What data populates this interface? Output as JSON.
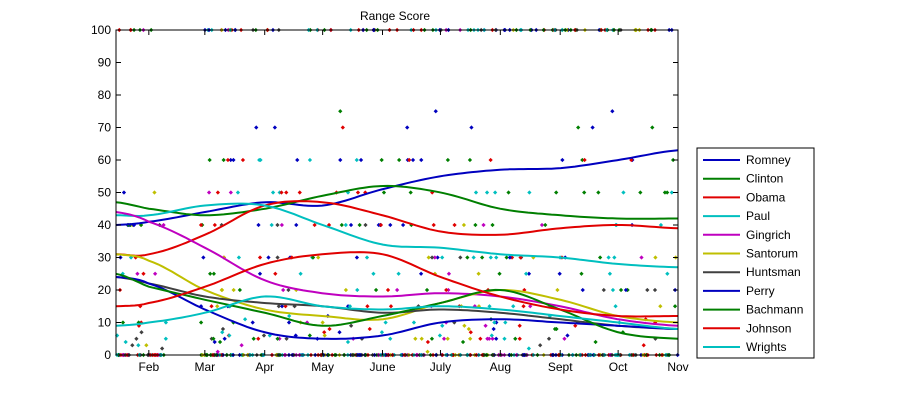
{
  "chart_data": {
    "type": "scatter",
    "title": "Range Score",
    "xlabel": "",
    "ylabel": "",
    "ylim": [
      0,
      100
    ],
    "xlim": [
      "2012-01-15",
      "2012-11-01"
    ],
    "grid": false,
    "legend_position": "right",
    "x_tick_labels": [
      "Feb",
      "Mar",
      "Apr",
      "May",
      "June",
      "July",
      "Aug",
      "Sept",
      "Oct",
      "Nov"
    ],
    "x_tick_dates": [
      "2012-02-01",
      "2012-03-01",
      "2012-04-01",
      "2012-05-01",
      "2012-06-01",
      "2012-07-01",
      "2012-08-01",
      "2012-09-01",
      "2012-10-01",
      "2012-11-01"
    ],
    "y_tick_labels": [
      "0",
      "10",
      "20",
      "30",
      "40",
      "50",
      "60",
      "70",
      "80",
      "90",
      "100"
    ],
    "y_ticks": [
      0,
      10,
      20,
      30,
      40,
      50,
      60,
      70,
      80,
      90,
      100
    ],
    "curve_dates": [
      "2012-01-15",
      "2012-02-01",
      "2012-03-01",
      "2012-04-01",
      "2012-05-01",
      "2012-06-01",
      "2012-07-01",
      "2012-08-01",
      "2012-09-01",
      "2012-10-01",
      "2012-11-01"
    ],
    "series": [
      {
        "name": "Romney",
        "color": "#0000bf",
        "trend": [
          40,
          41,
          44,
          47,
          46,
          51,
          55,
          57,
          57.5,
          60,
          63
        ]
      },
      {
        "name": "Clinton",
        "color": "#007f00",
        "trend": [
          47,
          45,
          43,
          45,
          49,
          52,
          50,
          45,
          43,
          42,
          42
        ]
      },
      {
        "name": "Obama",
        "color": "#e00000",
        "trend": [
          31,
          31,
          37,
          46,
          47,
          43,
          38,
          37,
          39,
          40,
          39
        ]
      },
      {
        "name": "Paul",
        "color": "#00bfbf",
        "trend": [
          43,
          43,
          46,
          46,
          40,
          34,
          33,
          31,
          30,
          28,
          27
        ]
      },
      {
        "name": "Gingrich",
        "color": "#bf00bf",
        "trend": [
          44,
          41,
          33,
          23,
          19,
          18,
          19,
          18,
          15,
          11,
          9
        ]
      },
      {
        "name": "Santorum",
        "color": "#bfbf00",
        "trend": [
          31,
          29,
          20,
          14,
          12,
          11,
          16,
          20,
          17,
          12,
          10
        ]
      },
      {
        "name": "Huntsman",
        "color": "#404040",
        "trend": [
          24,
          22,
          18,
          16,
          15,
          13,
          14,
          13,
          11,
          9,
          8
        ]
      },
      {
        "name": "Perry",
        "color": "#0000bf",
        "trend": [
          24,
          22,
          14,
          7,
          5,
          6,
          10,
          11,
          10,
          9,
          8
        ]
      },
      {
        "name": "Bachmann",
        "color": "#007f00",
        "trend": [
          25,
          21,
          17,
          13,
          9,
          12,
          16,
          20,
          14,
          7,
          5
        ]
      },
      {
        "name": "Johnson",
        "color": "#e00000",
        "trend": [
          15,
          16,
          21,
          28,
          31,
          31,
          24,
          18,
          14,
          12,
          12
        ]
      },
      {
        "name": "Wrights",
        "color": "#00bfbf",
        "trend": [
          9,
          10,
          13,
          18,
          15,
          14,
          15,
          14,
          12,
          10,
          8
        ]
      }
    ]
  }
}
